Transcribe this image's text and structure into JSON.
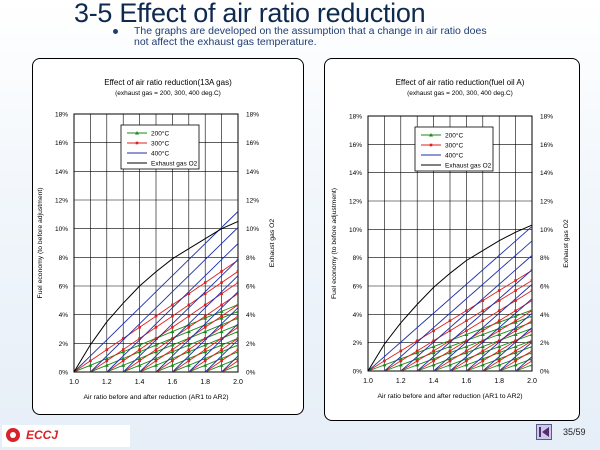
{
  "slide": {
    "title": "3-5 Effect of air ratio reduction",
    "bullet": "The graphs are developed on the assumption that a change in air ratio does not affect the exhaust gas temperature.",
    "logo_text": "ECCJ",
    "page_number": "35/59"
  },
  "chart_data": [
    {
      "type": "line",
      "title": "Effect of air ratio reduction(13A gas)",
      "subtitle": "(exhaust gas = 200, 300, 400 deg.C)",
      "xlabel": "Air ratio before and after reduction (AR1 to AR2)",
      "ylabel": "Fuel economy (to before adjustment)",
      "y2label": "Exhaust gas O2",
      "xlim": [
        1.0,
        2.0
      ],
      "ylim": [
        0,
        18
      ],
      "y2lim": [
        0,
        18
      ],
      "x_ticks": [
        "1.0",
        "1.2",
        "1.4",
        "1.6",
        "1.8",
        "2.0"
      ],
      "y_ticks": [
        "0%",
        "2%",
        "4%",
        "6%",
        "8%",
        "10%",
        "12%",
        "14%",
        "16%",
        "18%"
      ],
      "y2_ticks": [
        "0%",
        "2%",
        "4%",
        "6%",
        "8%",
        "10%",
        "12%",
        "14%",
        "16%",
        "18%"
      ],
      "grid": true,
      "legend_position": "top-center",
      "legend": [
        "200°C",
        "300°C",
        "400°C",
        "Exhaust gas O2"
      ],
      "series_colors": [
        "#1a8a1a",
        "#e0201c",
        "#1c2fa8",
        "#000000"
      ],
      "ar2_values": [
        1.0,
        1.1,
        1.2,
        1.3,
        1.4,
        1.5,
        1.6,
        1.7,
        1.8,
        1.9
      ],
      "coefficients": {
        "200": 4.7,
        "300": 7.8,
        "400": 11.2
      },
      "o2_curve": {
        "x": [
          1.0,
          1.1,
          1.2,
          1.3,
          1.4,
          1.5,
          1.6,
          1.7,
          1.8,
          1.9,
          2.0
        ],
        "y": [
          0,
          1.9,
          3.5,
          4.8,
          6.0,
          7.0,
          7.9,
          8.6,
          9.3,
          10.0,
          10.5
        ]
      }
    },
    {
      "type": "line",
      "title": "Effect of air ratio reduction(fuel oil A)",
      "subtitle": "(exhaust gas = 200, 300, 400 deg.C)",
      "xlabel": "Air ratio before and after reduction (AR1 to AR2)",
      "ylabel": "Fuel economy (to before adjustment)",
      "y2label": "Exhaust gas O2",
      "xlim": [
        1.0,
        2.0
      ],
      "ylim": [
        0,
        18
      ],
      "y2lim": [
        0,
        18
      ],
      "x_ticks": [
        "1.0",
        "1.2",
        "1.4",
        "1.6",
        "1.8",
        "2.0"
      ],
      "y_ticks": [
        "0%",
        "2%",
        "4%",
        "6%",
        "8%",
        "10%",
        "12%",
        "14%",
        "16%",
        "18%"
      ],
      "y2_ticks": [
        "0%",
        "2%",
        "4%",
        "6%",
        "8%",
        "10%",
        "12%",
        "14%",
        "16%",
        "18%"
      ],
      "grid": true,
      "legend_position": "top-center",
      "legend": [
        "200°C",
        "300°C",
        "400°C",
        "Exhaust gas O2"
      ],
      "series_colors": [
        "#1a8a1a",
        "#e0201c",
        "#1c2fa8",
        "#000000"
      ],
      "ar2_values": [
        1.0,
        1.1,
        1.2,
        1.3,
        1.4,
        1.5,
        1.6,
        1.7,
        1.8,
        1.9
      ],
      "coefficients": {
        "200": 4.3,
        "300": 7.1,
        "400": 10.2
      },
      "o2_curve": {
        "x": [
          1.0,
          1.1,
          1.2,
          1.3,
          1.4,
          1.5,
          1.6,
          1.7,
          1.8,
          1.9,
          2.0
        ],
        "y": [
          0,
          1.9,
          3.4,
          4.7,
          5.9,
          6.9,
          7.8,
          8.5,
          9.2,
          9.8,
          10.3
        ]
      }
    }
  ]
}
